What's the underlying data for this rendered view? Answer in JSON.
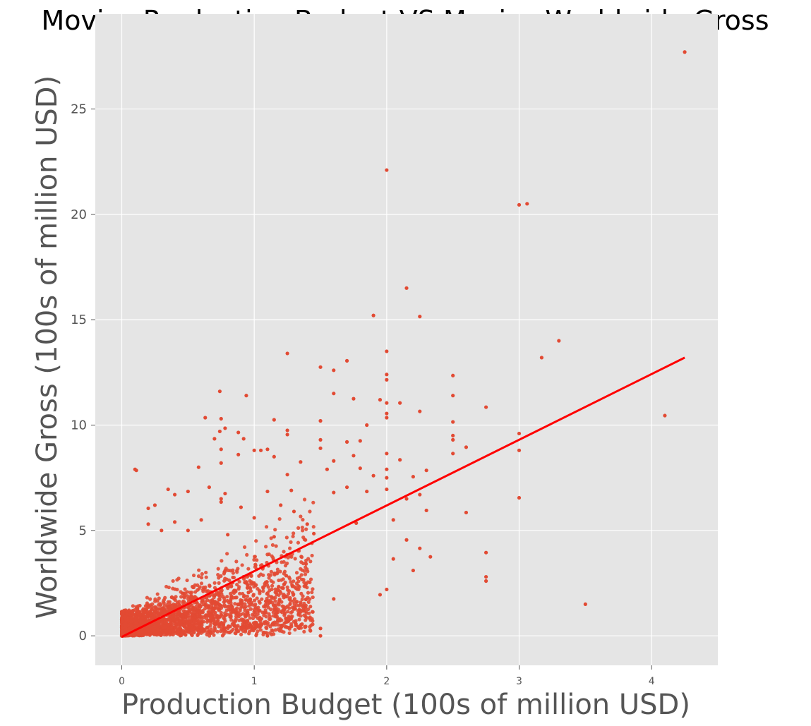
{
  "chart_data": {
    "type": "scatter",
    "title": "Movies Production Budget VS Movies Worldwide Gross",
    "xlabel": "Production Budget (100s of million USD)",
    "ylabel": "Worldwide Gross (100s of million USD)",
    "xlim": [
      -0.2,
      4.5
    ],
    "ylim": [
      -1.4,
      29.5
    ],
    "x_ticks": [
      0,
      1,
      2,
      3,
      4
    ],
    "y_ticks": [
      0,
      5,
      10,
      15,
      20,
      25
    ],
    "grid": true,
    "legend": "none",
    "colors": {
      "points": "#E24A33",
      "regression_line": "#FF0000",
      "panel_background": "#E5E5E5",
      "grid": "#FFFFFF"
    },
    "series": [
      {
        "kind": "points",
        "points": [
          [
            4.25,
            27.7
          ],
          [
            2.0,
            22.1
          ],
          [
            3.0,
            20.45
          ],
          [
            3.06,
            20.5
          ],
          [
            2.15,
            16.5
          ],
          [
            1.9,
            15.2
          ],
          [
            2.25,
            15.15
          ],
          [
            3.3,
            14.0
          ],
          [
            3.17,
            13.2
          ],
          [
            1.25,
            13.4
          ],
          [
            2.0,
            13.5
          ],
          [
            1.7,
            13.05
          ],
          [
            1.5,
            12.75
          ],
          [
            1.6,
            12.6
          ],
          [
            2.0,
            12.4
          ],
          [
            2.0,
            12.15
          ],
          [
            2.5,
            12.35
          ],
          [
            1.6,
            11.5
          ],
          [
            0.74,
            11.6
          ],
          [
            0.94,
            11.4
          ],
          [
            2.5,
            11.4
          ],
          [
            2.1,
            11.05
          ],
          [
            2.0,
            11.05
          ],
          [
            1.75,
            11.25
          ],
          [
            1.95,
            11.2
          ],
          [
            2.75,
            10.85
          ],
          [
            4.1,
            10.45
          ],
          [
            2.25,
            10.65
          ],
          [
            2.0,
            10.55
          ],
          [
            2.0,
            10.35
          ],
          [
            0.63,
            10.35
          ],
          [
            0.75,
            10.3
          ],
          [
            1.15,
            10.25
          ],
          [
            1.5,
            10.2
          ],
          [
            2.5,
            10.15
          ],
          [
            1.85,
            10.0
          ],
          [
            0.78,
            9.85
          ],
          [
            0.74,
            9.7
          ],
          [
            1.25,
            9.75
          ],
          [
            1.25,
            9.55
          ],
          [
            2.5,
            9.5
          ],
          [
            2.5,
            9.3
          ],
          [
            3.0,
            9.6
          ],
          [
            0.88,
            9.65
          ],
          [
            0.92,
            9.35
          ],
          [
            0.7,
            9.35
          ],
          [
            1.5,
            9.3
          ],
          [
            1.7,
            9.2
          ],
          [
            1.8,
            9.25
          ],
          [
            2.6,
            8.95
          ],
          [
            1.5,
            8.9
          ],
          [
            0.75,
            8.85
          ],
          [
            1.0,
            8.8
          ],
          [
            1.05,
            8.8
          ],
          [
            1.1,
            8.85
          ],
          [
            1.15,
            8.5
          ],
          [
            0.88,
            8.6
          ],
          [
            3.0,
            8.8
          ],
          [
            2.0,
            8.65
          ],
          [
            2.5,
            8.65
          ],
          [
            1.75,
            8.55
          ],
          [
            1.6,
            8.3
          ],
          [
            1.35,
            8.25
          ],
          [
            2.1,
            8.35
          ],
          [
            0.75,
            8.2
          ],
          [
            0.58,
            8.0
          ],
          [
            0.1,
            7.9
          ],
          [
            0.11,
            7.85
          ],
          [
            1.55,
            7.9
          ],
          [
            1.8,
            7.95
          ],
          [
            2.0,
            7.9
          ],
          [
            1.25,
            7.65
          ],
          [
            2.3,
            7.85
          ],
          [
            1.9,
            7.6
          ],
          [
            2.2,
            7.55
          ],
          [
            2.0,
            7.5
          ],
          [
            1.7,
            7.05
          ],
          [
            0.66,
            7.05
          ],
          [
            0.35,
            6.95
          ],
          [
            0.5,
            6.85
          ],
          [
            0.78,
            6.75
          ],
          [
            0.4,
            6.7
          ],
          [
            1.1,
            6.85
          ],
          [
            1.28,
            6.9
          ],
          [
            1.6,
            6.8
          ],
          [
            1.85,
            6.85
          ],
          [
            2.0,
            6.95
          ],
          [
            2.25,
            6.7
          ],
          [
            3.0,
            6.55
          ],
          [
            0.75,
            6.5
          ],
          [
            0.75,
            6.35
          ],
          [
            0.25,
            6.2
          ],
          [
            0.2,
            6.05
          ],
          [
            0.9,
            6.1
          ],
          [
            1.2,
            6.2
          ],
          [
            2.15,
            6.5
          ],
          [
            2.3,
            5.95
          ],
          [
            2.6,
            5.85
          ],
          [
            1.3,
            5.9
          ],
          [
            1.0,
            5.6
          ],
          [
            0.6,
            5.5
          ],
          [
            0.4,
            5.4
          ],
          [
            0.2,
            5.3
          ],
          [
            1.4,
            5.3
          ],
          [
            1.77,
            5.35
          ],
          [
            2.05,
            5.5
          ],
          [
            0.3,
            5.0
          ],
          [
            0.5,
            5.0
          ],
          [
            0.8,
            4.8
          ],
          [
            1.15,
            4.7
          ],
          [
            1.45,
            4.85
          ],
          [
            2.15,
            4.55
          ],
          [
            2.25,
            4.15
          ],
          [
            2.33,
            3.75
          ],
          [
            2.05,
            3.65
          ],
          [
            2.2,
            3.1
          ],
          [
            2.75,
            3.95
          ],
          [
            2.75,
            2.8
          ],
          [
            2.75,
            2.6
          ],
          [
            2.0,
            2.2
          ],
          [
            1.95,
            1.95
          ],
          [
            1.6,
            1.75
          ],
          [
            3.5,
            1.5
          ],
          [
            1.5,
            0.35
          ],
          [
            1.5,
            0.0
          ],
          [
            1.1,
            0.0
          ]
        ]
      },
      {
        "kind": "dense_cloud",
        "note": "High-density cluster of several thousand points concentrated near the origin (budget 0–1.5, gross 0–5)"
      },
      {
        "kind": "regression_line",
        "x": [
          0.0,
          4.25
        ],
        "y": [
          -0.05,
          13.2
        ]
      }
    ]
  }
}
